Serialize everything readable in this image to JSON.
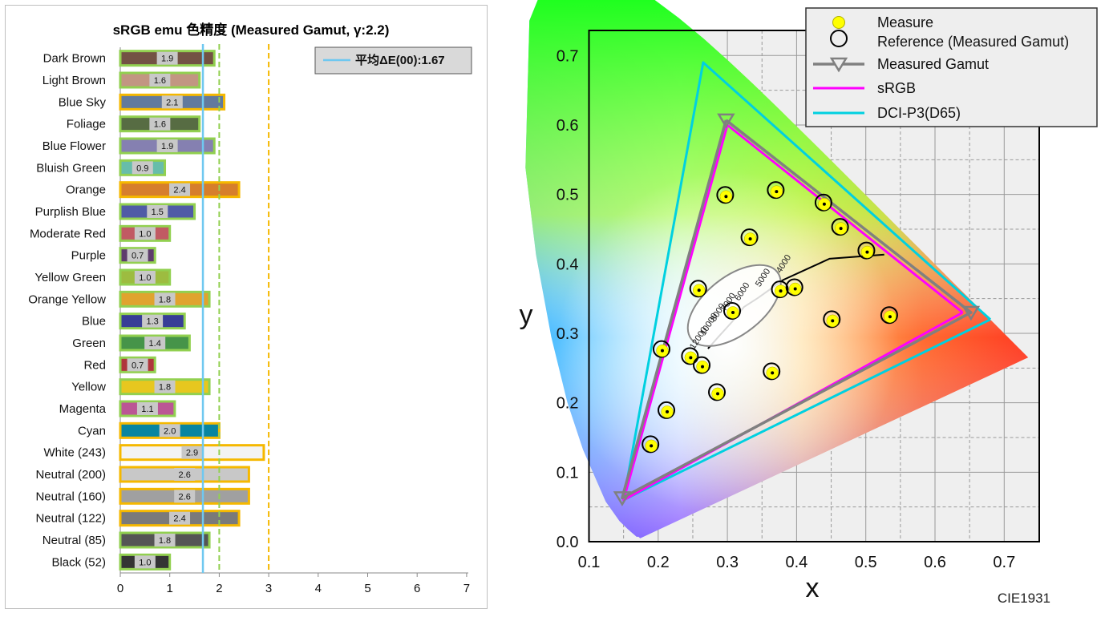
{
  "chart_data": [
    {
      "type": "bar",
      "orientation": "horizontal",
      "title": "sRGB emu 色精度 (Measured Gamut, γ:2.2)",
      "legend": {
        "label": "平均ΔE(00):1.67",
        "position": "top-right"
      },
      "mean_line": 1.67,
      "reference_lines": [
        2,
        3
      ],
      "xlim": [
        0,
        7
      ],
      "xticks": [
        0,
        1,
        2,
        3,
        4,
        5,
        6,
        7
      ],
      "grid": false,
      "categories": [
        "Dark Brown",
        "Light Brown",
        "Blue Sky",
        "Foliage",
        "Blue Flower",
        "Bluish Green",
        "Orange",
        "Purplish Blue",
        "Moderate Red",
        "Purple",
        "Yellow Green",
        "Orange Yellow",
        "Blue",
        "Green",
        "Red",
        "Yellow",
        "Magenta",
        "Cyan",
        "White (243)",
        "Neutral (200)",
        "Neutral (160)",
        "Neutral (122)",
        "Neutral (85)",
        "Black (52)"
      ],
      "values": [
        1.9,
        1.6,
        2.1,
        1.6,
        1.9,
        0.9,
        2.4,
        1.5,
        1.0,
        0.7,
        1.0,
        1.8,
        1.3,
        1.4,
        0.7,
        1.8,
        1.1,
        2.0,
        2.9,
        2.6,
        2.6,
        2.4,
        1.8,
        1.0
      ],
      "value_labels": [
        "1.9",
        "1.6",
        "2.1",
        "1.6",
        "1.9",
        "0.9",
        "2.4",
        "1.5",
        "1.0",
        "0.7",
        "1.0",
        "1.8",
        "1.3",
        "1.4",
        "0.7",
        "1.8",
        "1.1",
        "2.0",
        "2.9",
        "2.6",
        "2.6",
        "2.4",
        "1.8",
        "1.0"
      ],
      "bar_colors": [
        "#735244",
        "#c29682",
        "#627a9d",
        "#576c43",
        "#8580b1",
        "#67bdaa",
        "#d67e2c",
        "#505ba6",
        "#c15a63",
        "#5e3c6c",
        "#9dbc40",
        "#e0a32e",
        "#383d96",
        "#469449",
        "#af363c",
        "#e7c71f",
        "#bb5695",
        "#0885a1",
        "#f3f3f3",
        "#c8c8c8",
        "#a0a0a0",
        "#7a7a7a",
        "#555555",
        "#343434"
      ],
      "outline_colors": {
        "under_2": "#92d050",
        "2_to_3": "#f5b800"
      }
    },
    {
      "type": "scatter",
      "subtype": "CIE1931 chromaticity diagram",
      "xlabel": "x",
      "ylabel": "y",
      "xlim": [
        0.1,
        0.73
      ],
      "ylim": [
        0.0,
        0.73
      ],
      "xticks": [
        "0.1",
        "0.2",
        "0.3",
        "0.4",
        "0.5",
        "0.6",
        "0.7"
      ],
      "yticks": [
        "0.0",
        "0.1",
        "0.2",
        "0.3",
        "0.4",
        "0.5",
        "0.6",
        "0.7"
      ],
      "grid": true,
      "annotation": "CIE1931",
      "legend": {
        "position": "top-right",
        "items": [
          "Measure",
          "Reference (Measured Gamut)",
          "Measured Gamut",
          "sRGB",
          "DCI-P3(D65)"
        ]
      },
      "colors": {
        "measure": "#ffff00",
        "measured_gamut": "#808080",
        "srgb": "#ff00ff",
        "dcip3": "#00d0e0"
      },
      "series": [
        {
          "name": "Measured Gamut",
          "points": [
            [
              0.298,
              0.607
            ],
            [
              0.652,
              0.33
            ],
            [
              0.148,
              0.063
            ],
            [
              0.298,
              0.607
            ]
          ]
        },
        {
          "name": "sRGB",
          "points": [
            [
              0.64,
              0.33
            ],
            [
              0.3,
              0.6
            ],
            [
              0.15,
              0.06
            ],
            [
              0.64,
              0.33
            ]
          ]
        },
        {
          "name": "DCI-P3(D65)",
          "points": [
            [
              0.68,
              0.32
            ],
            [
              0.265,
              0.69
            ],
            [
              0.15,
              0.06
            ],
            [
              0.68,
              0.32
            ]
          ]
        }
      ],
      "measure_points": [
        [
          0.298,
          0.497
        ],
        [
          0.371,
          0.504
        ],
        [
          0.44,
          0.486
        ],
        [
          0.464,
          0.451
        ],
        [
          0.333,
          0.436
        ],
        [
          0.502,
          0.417
        ],
        [
          0.259,
          0.362
        ],
        [
          0.377,
          0.361
        ],
        [
          0.398,
          0.364
        ],
        [
          0.308,
          0.33
        ],
        [
          0.452,
          0.318
        ],
        [
          0.535,
          0.324
        ],
        [
          0.206,
          0.275
        ],
        [
          0.247,
          0.265
        ],
        [
          0.264,
          0.252
        ],
        [
          0.365,
          0.243
        ],
        [
          0.286,
          0.213
        ],
        [
          0.213,
          0.187
        ],
        [
          0.19,
          0.138
        ]
      ],
      "planckian_labels": [
        "4000",
        "5000",
        "6000",
        "7000",
        "8000",
        "10000",
        "12000"
      ]
    }
  ]
}
